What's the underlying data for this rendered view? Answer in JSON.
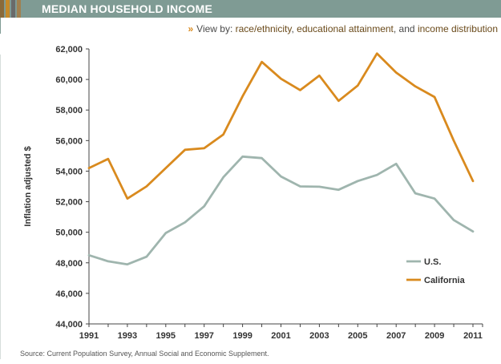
{
  "header": {
    "title": "MEDIAN HOUSEHOLD INCOME",
    "swatch_colors": [
      "#8a6a3a",
      "#c58a2a",
      "#6a6a6a",
      "#a08050"
    ],
    "bar_color": "#7f9b94"
  },
  "viewby": {
    "icon": "double-chevron-right-icon",
    "chevron": "»",
    "prefix": "View by:",
    "link1": "race/ethnicity",
    "sep1": ",",
    "link2": "educational attainment",
    "sep2": ", and",
    "link3": "income distribution"
  },
  "chart_data": {
    "type": "line",
    "xlabel": "",
    "ylabel": "Inflation adjusted $",
    "ylim": [
      44000,
      62000
    ],
    "y_ticks": [
      "44,000",
      "46,000",
      "48,000",
      "50,000",
      "52,000",
      "54,000",
      "56,000",
      "58,000",
      "60,000",
      "62,000"
    ],
    "y_tick_values": [
      44000,
      46000,
      48000,
      50000,
      52000,
      54000,
      56000,
      58000,
      60000,
      62000
    ],
    "x": [
      1991,
      1992,
      1993,
      1994,
      1995,
      1996,
      1997,
      1998,
      1999,
      2000,
      2001,
      2002,
      2003,
      2004,
      2005,
      2006,
      2007,
      2008,
      2009,
      2010,
      2011
    ],
    "x_tick_labels": [
      "1991",
      "1993",
      "1995",
      "1997",
      "1999",
      "2001",
      "2003",
      "2005",
      "2007",
      "2009",
      "2011"
    ],
    "series": [
      {
        "name": "U.S.",
        "color": "#9fb5ae",
        "values": [
          48500,
          48100,
          47900,
          48400,
          49950,
          50650,
          51700,
          53600,
          54950,
          54850,
          53650,
          53000,
          52980,
          52780,
          53350,
          53750,
          54480,
          52550,
          52200,
          50800,
          50050
        ]
      },
      {
        "name": "California",
        "color": "#d98a1e",
        "values": [
          54200,
          54800,
          52200,
          53000,
          54200,
          55400,
          55500,
          56400,
          58900,
          61150,
          60050,
          59300,
          60250,
          58600,
          59600,
          61700,
          60450,
          59550,
          58850,
          56000,
          53350
        ]
      }
    ],
    "legend_position": "bottom-right",
    "grid": false
  },
  "source": "Source: Current Population Survey, Annual Social and Economic Supplement."
}
